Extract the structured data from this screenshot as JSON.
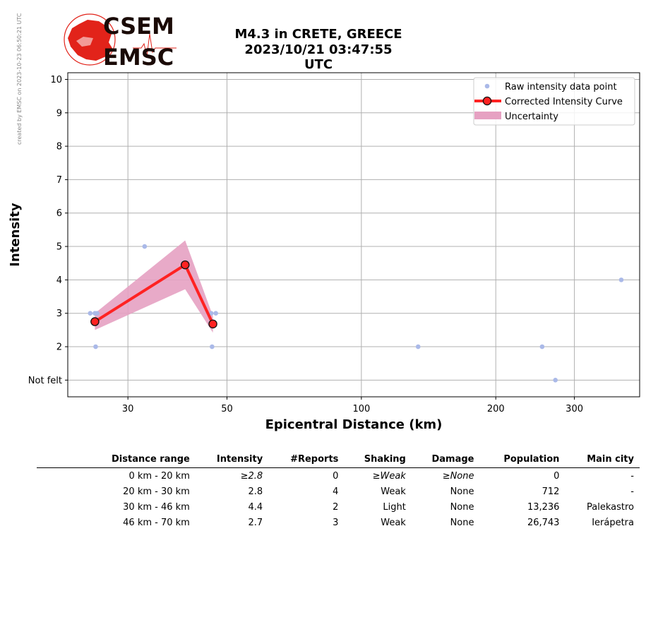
{
  "side_note": "created by EMSC on 2023-10-23 06:50:21 UTC",
  "logo": {
    "line1": "CSEM",
    "line2": "EMSC",
    "colors": {
      "red": "#e2231a",
      "dark": "#1a0a06"
    }
  },
  "title_line1": "M4.3 in CRETE, GREECE",
  "title_line2": "2023/10/21 03:47:55 UTC",
  "chart_data": {
    "type": "line",
    "xlabel": "Epicentral Distance (km)",
    "ylabel": "Intensity",
    "xscale": "log",
    "xlim": [
      22,
      420
    ],
    "ylim": [
      0.5,
      10.2
    ],
    "x_ticks": [
      30,
      50,
      100,
      200,
      300
    ],
    "x_tick_labels": [
      "30",
      "50",
      "100",
      "200",
      "300"
    ],
    "y_ticks": [
      1,
      2,
      3,
      4,
      5,
      6,
      7,
      8,
      9,
      10
    ],
    "y_tick_labels": [
      "Not felt",
      "2",
      "3",
      "4",
      "5",
      "6",
      "7",
      "8",
      "9",
      "10"
    ],
    "grid": true,
    "legend_position": "top-right",
    "colors": {
      "raw": "#aab9e8",
      "curve": "#ff2222",
      "marker_edge": "#111111",
      "band": "#e6a1c2"
    },
    "raw_points": [
      {
        "x": 24.7,
        "y": 3
      },
      {
        "x": 25.3,
        "y": 3
      },
      {
        "x": 25.6,
        "y": 3
      },
      {
        "x": 25.4,
        "y": 2
      },
      {
        "x": 32.7,
        "y": 5
      },
      {
        "x": 46.1,
        "y": 3
      },
      {
        "x": 46.3,
        "y": 2
      },
      {
        "x": 47.2,
        "y": 3
      },
      {
        "x": 134,
        "y": 2
      },
      {
        "x": 254,
        "y": 2
      },
      {
        "x": 272,
        "y": 1
      },
      {
        "x": 382,
        "y": 4
      }
    ],
    "series": [
      {
        "name": "Corrected Intensity Curve",
        "x": [
          25.3,
          40.3,
          46.5
        ],
        "y": [
          2.75,
          4.45,
          2.68
        ]
      }
    ],
    "uncertainty": {
      "x": [
        25.3,
        40.3,
        46.5
      ],
      "lower": [
        2.5,
        3.72,
        2.42
      ],
      "upper": [
        3.0,
        5.18,
        2.92
      ]
    },
    "legend": [
      "Raw intensity data point",
      "Corrected Intensity Curve",
      "Uncertainty"
    ]
  },
  "table": {
    "headers": [
      "Distance range",
      "Intensity",
      "#Reports",
      "Shaking",
      "Damage",
      "Population",
      "Main city"
    ],
    "rows": [
      {
        "range": "0 km -   20 km",
        "intensity": "≥2.8",
        "reports": "0",
        "shaking": "≥Weak",
        "damage": "≥None",
        "population": "0",
        "city": "-",
        "italic": true
      },
      {
        "range": "20 km -   30 km",
        "intensity": "2.8",
        "reports": "4",
        "shaking": "Weak",
        "damage": "None",
        "population": "712",
        "city": "-",
        "italic": false
      },
      {
        "range": "30 km -   46 km",
        "intensity": "4.4",
        "reports": "2",
        "shaking": "Light",
        "damage": "None",
        "population": "13,236",
        "city": "Palekastro",
        "italic": false
      },
      {
        "range": "46 km -   70 km",
        "intensity": "2.7",
        "reports": "3",
        "shaking": "Weak",
        "damage": "None",
        "population": "26,743",
        "city": "Ierápetra",
        "italic": false
      }
    ]
  }
}
